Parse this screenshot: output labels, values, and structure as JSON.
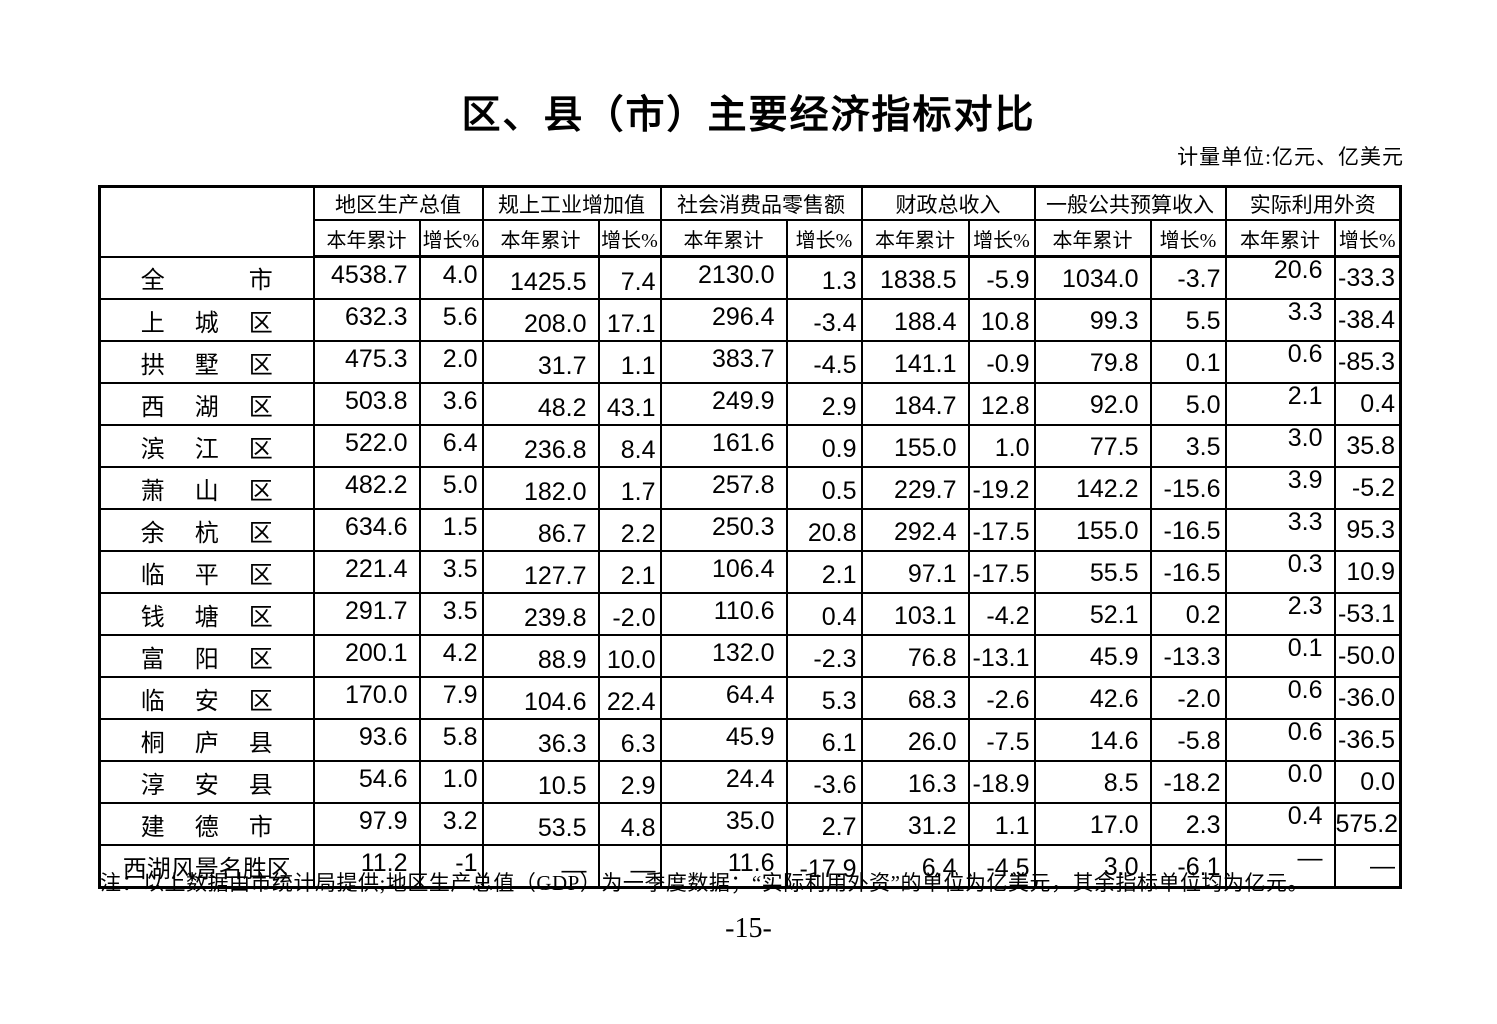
{
  "page": {
    "title": "区、县（市）主要经济指标对比",
    "unit_note": "计量单位:亿元、亿美元",
    "footnote": "注：以上数据由市统计局提供;地区生产总值（GDP）为一季度数据；“实际利用外资”的单位为亿美元，其余指标单位均为亿元。",
    "page_number": "-15-"
  },
  "chart_data": {
    "type": "table",
    "column_groups": [
      "地区生产总值",
      "规上工业增加值",
      "社会消费品零售额",
      "财政总收入",
      "一般公共预算收入",
      "实际利用外资"
    ],
    "sub_columns_per_group": [
      "本年累计",
      "增长%"
    ]
  },
  "table": {
    "groups": [
      {
        "label": "地区生产总值",
        "sub": [
          "本年累计",
          "增长%"
        ]
      },
      {
        "label": "规上工业增加值",
        "sub": [
          "本年累计",
          "增长%"
        ]
      },
      {
        "label": "社会消费品零售额",
        "sub": [
          "本年累计",
          "增长%"
        ]
      },
      {
        "label": "财政总收入",
        "sub": [
          "本年累计",
          "增长%"
        ]
      },
      {
        "label": "一般公共预算收入",
        "sub": [
          "本年累计",
          "增长%"
        ]
      },
      {
        "label": "实际利用外资",
        "sub": [
          "本年累计",
          "增长%"
        ]
      }
    ],
    "rows": [
      {
        "name": "全　市",
        "values": [
          "4538.7",
          "4.0",
          "1425.5",
          "7.4",
          "2130.0",
          "1.3",
          "1838.5",
          "-5.9",
          "1034.0",
          "-3.7",
          "20.6",
          "-33.3"
        ]
      },
      {
        "name": "上城区",
        "values": [
          "632.3",
          "5.6",
          "208.0",
          "17.1",
          "296.4",
          "-3.4",
          "188.4",
          "10.8",
          "99.3",
          "5.5",
          "3.3",
          "-38.4"
        ]
      },
      {
        "name": "拱墅区",
        "values": [
          "475.3",
          "2.0",
          "31.7",
          "1.1",
          "383.7",
          "-4.5",
          "141.1",
          "-0.9",
          "79.8",
          "0.1",
          "0.6",
          "-85.3"
        ]
      },
      {
        "name": "西湖区",
        "values": [
          "503.8",
          "3.6",
          "48.2",
          "43.1",
          "249.9",
          "2.9",
          "184.7",
          "12.8",
          "92.0",
          "5.0",
          "2.1",
          "0.4"
        ]
      },
      {
        "name": "滨江区",
        "values": [
          "522.0",
          "6.4",
          "236.8",
          "8.4",
          "161.6",
          "0.9",
          "155.0",
          "1.0",
          "77.5",
          "3.5",
          "3.0",
          "35.8"
        ]
      },
      {
        "name": "萧山区",
        "values": [
          "482.2",
          "5.0",
          "182.0",
          "1.7",
          "257.8",
          "0.5",
          "229.7",
          "-19.2",
          "142.2",
          "-15.6",
          "3.9",
          "-5.2"
        ]
      },
      {
        "name": "余杭区",
        "values": [
          "634.6",
          "1.5",
          "86.7",
          "2.2",
          "250.3",
          "20.8",
          "292.4",
          "-17.5",
          "155.0",
          "-16.5",
          "3.3",
          "95.3"
        ]
      },
      {
        "name": "临平区",
        "values": [
          "221.4",
          "3.5",
          "127.7",
          "2.1",
          "106.4",
          "2.1",
          "97.1",
          "-17.5",
          "55.5",
          "-16.5",
          "0.3",
          "10.9"
        ]
      },
      {
        "name": "钱塘区",
        "values": [
          "291.7",
          "3.5",
          "239.8",
          "-2.0",
          "110.6",
          "0.4",
          "103.1",
          "-4.2",
          "52.1",
          "0.2",
          "2.3",
          "-53.1"
        ]
      },
      {
        "name": "富阳区",
        "values": [
          "200.1",
          "4.2",
          "88.9",
          "10.0",
          "132.0",
          "-2.3",
          "76.8",
          "-13.1",
          "45.9",
          "-13.3",
          "0.1",
          "-50.0"
        ]
      },
      {
        "name": "临安区",
        "values": [
          "170.0",
          "7.9",
          "104.6",
          "22.4",
          "64.4",
          "5.3",
          "68.3",
          "-2.6",
          "42.6",
          "-2.0",
          "0.6",
          "-36.0"
        ]
      },
      {
        "name": "桐庐县",
        "values": [
          "93.6",
          "5.8",
          "36.3",
          "6.3",
          "45.9",
          "6.1",
          "26.0",
          "-7.5",
          "14.6",
          "-5.8",
          "0.6",
          "-36.5"
        ]
      },
      {
        "name": "淳安县",
        "values": [
          "54.6",
          "1.0",
          "10.5",
          "2.9",
          "24.4",
          "-3.6",
          "16.3",
          "-18.9",
          "8.5",
          "-18.2",
          "0.0",
          "0.0"
        ]
      },
      {
        "name": "建德市",
        "values": [
          "97.9",
          "3.2",
          "53.5",
          "4.8",
          "35.0",
          "2.7",
          "31.2",
          "1.1",
          "17.0",
          "2.3",
          "0.4",
          "575.2"
        ]
      },
      {
        "name": "西湖风景名胜区",
        "values": [
          "11.2",
          "-1",
          "—",
          "—",
          "11.6",
          "-17.9",
          "6.4",
          "-4.5",
          "3.0",
          "-6.1",
          "—",
          "—"
        ]
      }
    ]
  }
}
